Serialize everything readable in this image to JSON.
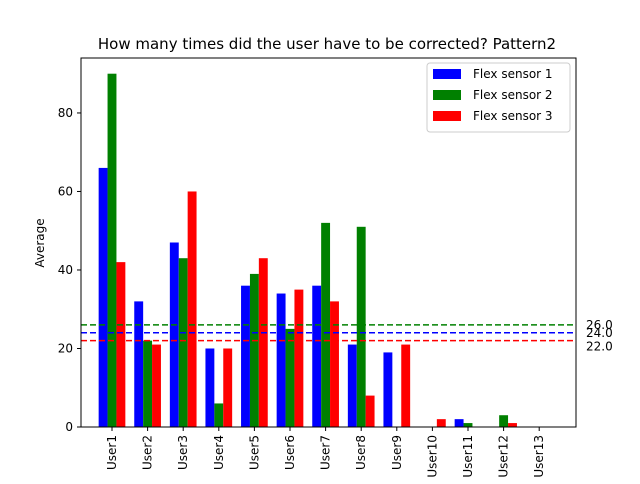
{
  "chart_data": {
    "type": "bar",
    "title": "How many times did the user have to be corrected? Pattern2",
    "xlabel": "",
    "ylabel": "Average",
    "ylim": [
      0,
      94
    ],
    "yticks": [
      0,
      20,
      40,
      60,
      80
    ],
    "grid": false,
    "legend_position": "top-right",
    "categories": [
      "User1",
      "User2",
      "User3",
      "User4",
      "User5",
      "User6",
      "User7",
      "User8",
      "User9",
      "User10",
      "User11",
      "User12",
      "User13"
    ],
    "series": [
      {
        "name": "Flex sensor 1",
        "color": "#0000ff",
        "values": [
          66,
          32,
          47,
          20,
          36,
          34,
          36,
          21,
          19,
          0,
          2,
          0,
          0
        ]
      },
      {
        "name": "Flex sensor 2",
        "color": "#008000",
        "values": [
          90,
          22,
          43,
          6,
          39,
          25,
          52,
          51,
          0,
          0,
          1,
          3,
          0
        ]
      },
      {
        "name": "Flex sensor 3",
        "color": "#ff0000",
        "values": [
          42,
          21,
          60,
          20,
          43,
          35,
          32,
          8,
          21,
          2,
          0,
          1,
          0
        ]
      }
    ],
    "reference_lines": [
      {
        "value": 26.0,
        "label": "26.0",
        "color": "#008000"
      },
      {
        "value": 24.0,
        "label": "24.0",
        "color": "#0000ff"
      },
      {
        "value": 22.0,
        "label": "22.0",
        "color": "#ff0000"
      }
    ]
  }
}
